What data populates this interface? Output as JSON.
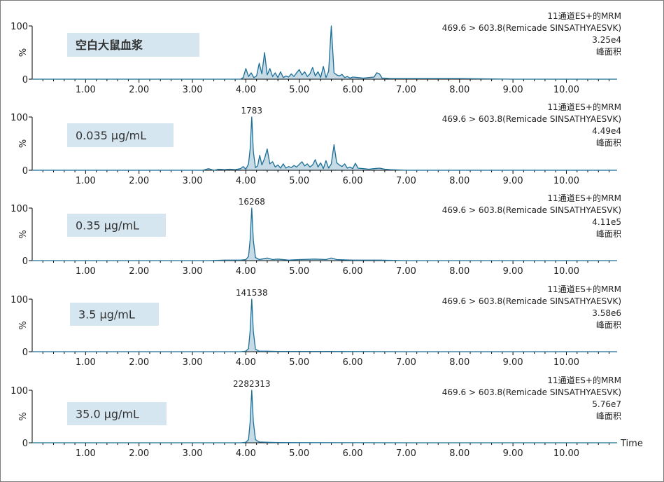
{
  "colors": {
    "trace": "#1b6f97",
    "label_box": "#d5e6f0",
    "axis": "#000000",
    "text": "#222222"
  },
  "x_axis_title": "Time",
  "chart_data": [
    {
      "type": "line",
      "sample_label": "空白大鼠血浆",
      "channel": "11通道ES+的MRM",
      "transition": "469.6 > 603.8(Remicade SINSATHYAESVK)",
      "peak_area_total": "3.25e4",
      "area_label": "峰面积",
      "peak_label": "",
      "ylabel": "%",
      "y_ticks": [
        "100",
        "0"
      ],
      "ylim": [
        0,
        100
      ],
      "xlim": [
        0.0,
        10.95
      ],
      "x_ticks": [
        "1.00",
        "2.00",
        "3.00",
        "4.00",
        "5.00",
        "6.00",
        "7.00",
        "8.00",
        "9.00",
        "10.00"
      ],
      "x": [
        0.0,
        3.9,
        3.95,
        4.0,
        4.05,
        4.1,
        4.15,
        4.2,
        4.25,
        4.3,
        4.35,
        4.4,
        4.45,
        4.5,
        4.55,
        4.6,
        4.65,
        4.7,
        4.75,
        4.8,
        4.85,
        4.9,
        4.95,
        5.0,
        5.05,
        5.1,
        5.15,
        5.2,
        5.25,
        5.3,
        5.35,
        5.4,
        5.45,
        5.5,
        5.55,
        5.6,
        5.65,
        5.7,
        5.75,
        5.8,
        5.85,
        5.9,
        5.95,
        6.0,
        6.1,
        6.2,
        6.3,
        6.4,
        6.45,
        6.5,
        6.55,
        6.6,
        6.7,
        6.8,
        6.9,
        7.0,
        7.5,
        8.0,
        9.0,
        10.0,
        10.95
      ],
      "y": [
        0,
        0,
        3,
        20,
        5,
        12,
        3,
        6,
        30,
        10,
        50,
        8,
        20,
        5,
        12,
        3,
        14,
        3,
        6,
        4,
        10,
        5,
        12,
        18,
        8,
        14,
        5,
        10,
        22,
        6,
        14,
        3,
        24,
        3,
        15,
        100,
        12,
        8,
        6,
        9,
        3,
        5,
        2,
        4,
        3,
        2,
        3,
        4,
        12,
        10,
        2,
        2,
        1,
        1,
        1,
        1,
        1,
        1,
        0,
        0,
        0
      ]
    },
    {
      "type": "line",
      "sample_label": "0.035 µg/mL",
      "channel": "11通道ES+的MRM",
      "transition": "469.6 > 603.8(Remicade SINSATHYAESVK)",
      "peak_area_total": "4.49e4",
      "area_label": "峰面积",
      "peak_label": "1783",
      "peak_x": 4.11,
      "ylabel": "%",
      "y_ticks": [
        "100",
        "0"
      ],
      "ylim": [
        0,
        100
      ],
      "xlim": [
        0.0,
        10.95
      ],
      "x_ticks": [
        "1.00",
        "2.00",
        "3.00",
        "4.00",
        "5.00",
        "6.00",
        "7.00",
        "8.00",
        "9.00",
        "10.00"
      ],
      "x": [
        0.0,
        3.2,
        3.3,
        3.4,
        3.5,
        3.6,
        3.7,
        3.8,
        3.9,
        3.95,
        4.0,
        4.05,
        4.08,
        4.11,
        4.14,
        4.18,
        4.22,
        4.26,
        4.3,
        4.35,
        4.4,
        4.45,
        4.5,
        4.55,
        4.6,
        4.65,
        4.7,
        4.75,
        4.8,
        4.85,
        4.9,
        4.95,
        5.0,
        5.05,
        5.1,
        5.15,
        5.2,
        5.25,
        5.3,
        5.35,
        5.4,
        5.45,
        5.5,
        5.55,
        5.6,
        5.65,
        5.7,
        5.75,
        5.8,
        5.85,
        5.9,
        5.95,
        6.0,
        6.05,
        6.1,
        6.2,
        6.3,
        6.4,
        6.5,
        6.55,
        6.6,
        6.7,
        7.0,
        7.5,
        8.0,
        9.0,
        10.0,
        10.95
      ],
      "y": [
        0,
        0,
        3,
        0,
        2,
        1,
        2,
        1,
        3,
        7,
        2,
        12,
        40,
        100,
        35,
        5,
        8,
        28,
        10,
        22,
        40,
        12,
        16,
        6,
        10,
        4,
        12,
        4,
        7,
        5,
        9,
        6,
        11,
        16,
        8,
        12,
        6,
        10,
        20,
        6,
        14,
        3,
        18,
        4,
        12,
        48,
        14,
        10,
        7,
        12,
        4,
        6,
        3,
        13,
        4,
        3,
        2,
        3,
        4,
        3,
        2,
        1,
        0,
        0,
        0,
        0,
        0,
        0
      ]
    },
    {
      "type": "line",
      "sample_label": "0.35 µg/mL",
      "channel": "11通道ES+的MRM",
      "transition": "469.6 > 603.8(Remicade SINSATHYAESVK)",
      "peak_area_total": "4.11e5",
      "area_label": "峰面积",
      "peak_label": "16268",
      "peak_x": 4.11,
      "ylabel": "%",
      "y_ticks": [
        "100",
        "0"
      ],
      "ylim": [
        0,
        100
      ],
      "xlim": [
        0.0,
        10.95
      ],
      "x": [
        0.0,
        3.3,
        3.6,
        3.9,
        4.0,
        4.05,
        4.08,
        4.11,
        4.14,
        4.18,
        4.25,
        4.3,
        4.4,
        4.5,
        4.6,
        4.8,
        5.0,
        5.3,
        5.5,
        5.6,
        5.7,
        6.0,
        6.5,
        7.0,
        8.0,
        9.0,
        10.0,
        10.95
      ],
      "x_ticks": [
        "1.00",
        "2.00",
        "3.00",
        "4.00",
        "5.00",
        "6.00",
        "7.00",
        "8.00",
        "9.00",
        "10.00"
      ],
      "y": [
        0,
        0,
        1,
        1,
        2,
        8,
        40,
        100,
        38,
        6,
        2,
        3,
        5,
        2,
        3,
        1,
        2,
        3,
        2,
        5,
        2,
        1,
        1,
        0,
        0,
        0,
        0,
        0
      ]
    },
    {
      "type": "line",
      "sample_label": "3.5 µg/mL",
      "channel": "11通道ES+的MRM",
      "transition": "469.6 > 603.8(Remicade SINSATHYAESVK)",
      "peak_area_total": "3.58e6",
      "area_label": "峰面积",
      "peak_label": "141538",
      "peak_x": 4.11,
      "ylabel": "%",
      "y_ticks": [
        "100",
        "0"
      ],
      "ylim": [
        0,
        100
      ],
      "xlim": [
        0.0,
        10.95
      ],
      "x_ticks": [
        "1.00",
        "2.00",
        "3.00",
        "4.00",
        "5.00",
        "6.00",
        "7.00",
        "8.00",
        "9.00",
        "10.00"
      ],
      "x": [
        0.0,
        3.9,
        4.0,
        4.05,
        4.08,
        4.11,
        4.14,
        4.18,
        4.25,
        4.4,
        4.6,
        5.0,
        5.5,
        6.0,
        7.0,
        8.0,
        9.0,
        10.0,
        10.95
      ],
      "y": [
        0,
        0,
        1,
        6,
        40,
        100,
        38,
        5,
        1,
        1,
        0.5,
        0.5,
        0.5,
        0.3,
        0,
        0,
        0,
        0,
        0
      ]
    },
    {
      "type": "line",
      "sample_label": "35.0 µg/mL",
      "channel": "11通道ES+的MRM",
      "transition": "469.6 > 603.8(Remicade SINSATHYAESVK)",
      "peak_area_total": "5.76e7",
      "area_label": "峰面积",
      "peak_label": "2282313",
      "peak_x": 4.11,
      "ylabel": "%",
      "y_ticks": [
        "100",
        "0"
      ],
      "ylim": [
        0,
        100
      ],
      "xlim": [
        0.0,
        10.95
      ],
      "x_ticks": [
        "1.00",
        "2.00",
        "3.00",
        "4.00",
        "5.00",
        "6.00",
        "7.00",
        "8.00",
        "9.00",
        "10.00"
      ],
      "x": [
        0.0,
        3.9,
        4.0,
        4.05,
        4.08,
        4.11,
        4.14,
        4.18,
        4.25,
        4.4,
        4.6,
        5.0,
        6.0,
        7.0,
        8.0,
        9.0,
        10.0,
        10.95
      ],
      "y": [
        0,
        0,
        1,
        6,
        40,
        100,
        40,
        6,
        1.5,
        1,
        0.5,
        0.3,
        0.2,
        0,
        0,
        0,
        0,
        0
      ]
    }
  ]
}
